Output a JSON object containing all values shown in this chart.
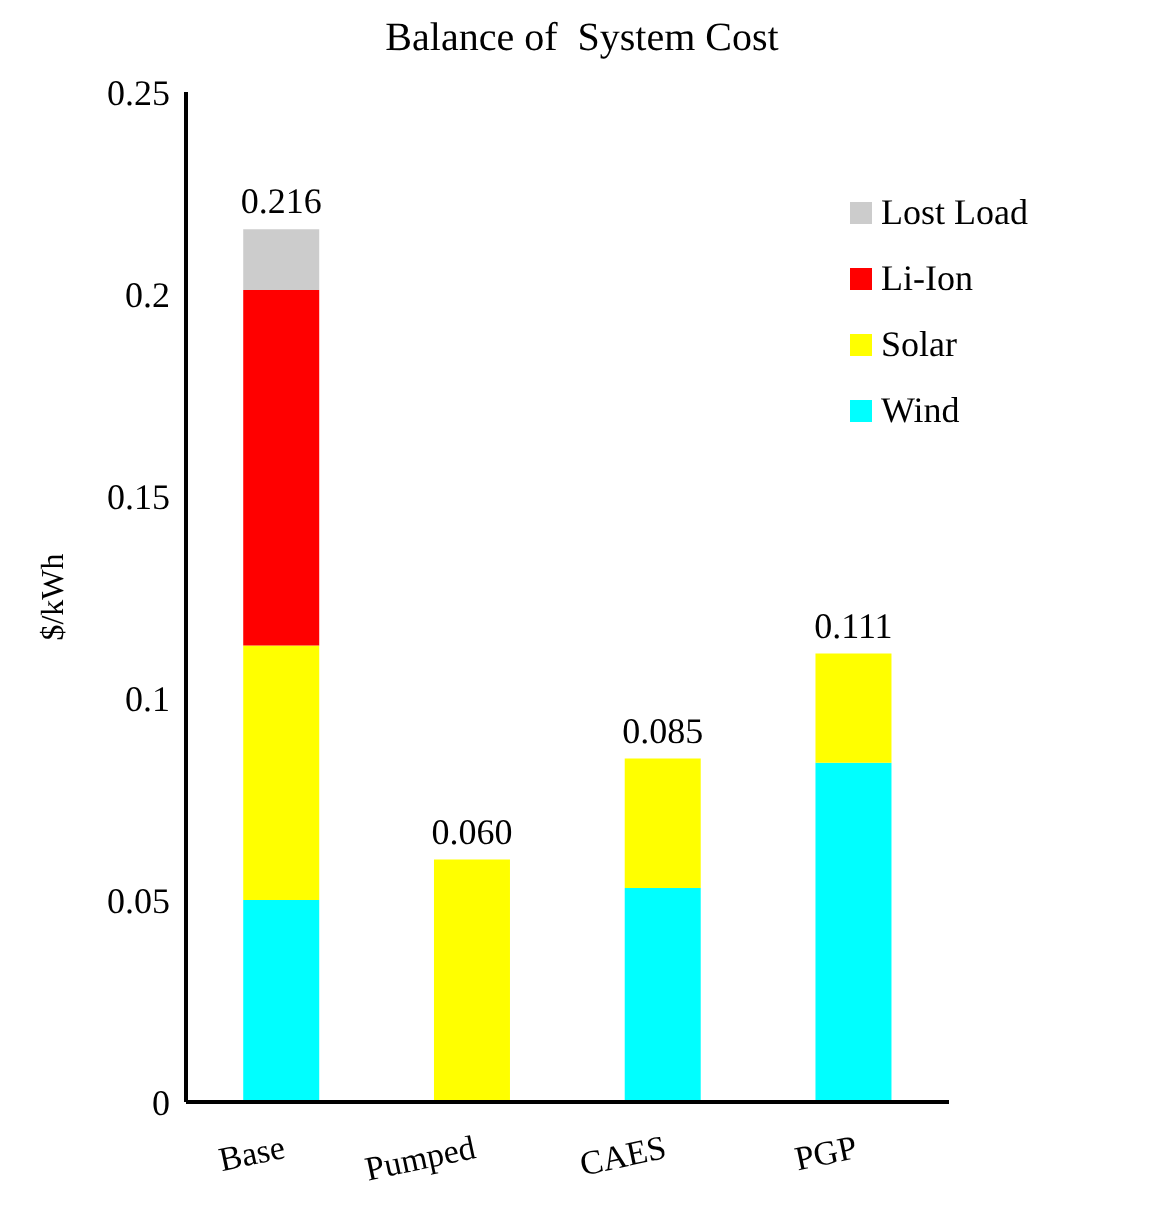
{
  "chart_data": {
    "type": "bar",
    "title": "Balance of  System Cost",
    "ylabel": "$/kWh",
    "categories": [
      "Base",
      "Pumped",
      "CAES",
      "PGP"
    ],
    "stacked": true,
    "series": [
      {
        "name": "Wind",
        "color": "#00ffff",
        "values": [
          0.05,
          null,
          0.053,
          0.084
        ]
      },
      {
        "name": "Solar",
        "color": "#ffff00",
        "values": [
          0.063,
          0.06,
          0.032,
          0.027
        ]
      },
      {
        "name": "Li-Ion",
        "color": "#ff0000",
        "values": [
          0.088,
          null,
          null,
          null
        ]
      },
      {
        "name": "Lost Load",
        "color": "#cccccc",
        "values": [
          0.015,
          null,
          null,
          null
        ]
      }
    ],
    "totals": [
      "0.216",
      "0.060",
      "0.085",
      "0.111"
    ],
    "ylim": [
      0,
      0.25
    ],
    "yticks": [
      0,
      0.05,
      0.1,
      0.15,
      0.2,
      0.25
    ],
    "grid": false,
    "legend": "top right"
  }
}
